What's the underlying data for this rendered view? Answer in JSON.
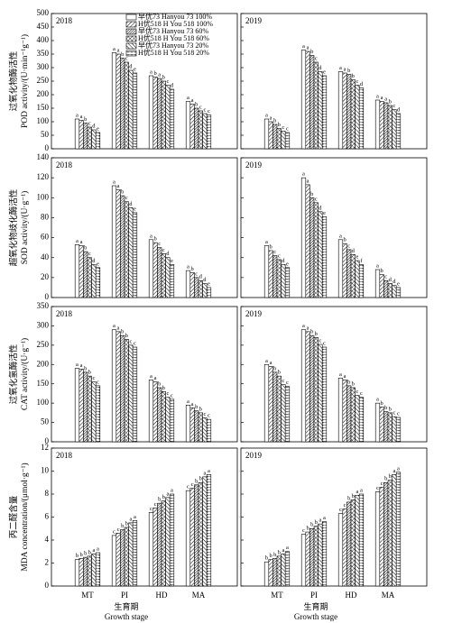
{
  "chart_data": [
    {
      "type": "bar",
      "panel": "2018",
      "ylabel": [
        "过氧化物酶活性",
        "POD activity/(U·min⁻¹g⁻¹)"
      ],
      "ylim": [
        0,
        500
      ],
      "yticks": [
        0,
        50,
        100,
        150,
        200,
        250,
        300,
        350,
        400,
        450,
        500
      ],
      "categories": [
        "MT",
        "PI",
        "HD",
        "MA"
      ],
      "legend": "top-right",
      "series": [
        {
          "name": "早优73 Hanyou 73 100%",
          "pattern": "none",
          "values": [
            110,
            355,
            270,
            175
          ],
          "letters": [
            "a",
            "a",
            "a",
            "a"
          ]
        },
        {
          "name": "H优518 H You 518 100%",
          "pattern": "diagonal",
          "values": [
            105,
            350,
            265,
            165
          ],
          "letters": [
            "a",
            "a",
            "b",
            "a"
          ]
        },
        {
          "name": "早优73 Hanyou 73 60%",
          "pattern": "dense-diagonal",
          "values": [
            95,
            335,
            260,
            150
          ],
          "letters": [
            "b",
            "b",
            "a",
            "b"
          ]
        },
        {
          "name": "H优518 H You 518 60%",
          "pattern": "crosshatch",
          "values": [
            80,
            320,
            250,
            140
          ],
          "letters": [
            "c",
            "c",
            "b",
            "c"
          ]
        },
        {
          "name": "早优73 Hanyou 73 20%",
          "pattern": "back-diagonal",
          "values": [
            70,
            290,
            235,
            130
          ],
          "letters": [
            "d",
            "d",
            "c",
            "c"
          ]
        },
        {
          "name": "H优518 H You 518 20%",
          "pattern": "horizontal",
          "values": [
            60,
            280,
            220,
            125
          ],
          "letters": [
            "e",
            "e",
            "d",
            "c"
          ]
        }
      ]
    },
    {
      "type": "bar",
      "panel": "2019",
      "ylim": [
        0,
        500
      ],
      "yticks": [
        0,
        50,
        100,
        150,
        200,
        250,
        300,
        350,
        400,
        450,
        500
      ],
      "categories": [
        "MT",
        "PI",
        "HD",
        "MA"
      ],
      "series": [
        {
          "values": [
            110,
            365,
            285,
            180
          ],
          "letters": [
            "a",
            "a",
            "a",
            "a"
          ]
        },
        {
          "values": [
            100,
            360,
            280,
            175
          ],
          "letters": [
            "a",
            "a",
            "a",
            "a"
          ]
        },
        {
          "values": [
            90,
            345,
            275,
            170
          ],
          "letters": [
            "b",
            "b",
            "b",
            "a"
          ]
        },
        {
          "values": [
            75,
            320,
            255,
            160
          ],
          "letters": [
            "b",
            "c",
            "b",
            "b"
          ]
        },
        {
          "values": [
            65,
            285,
            235,
            145
          ],
          "letters": [
            "c",
            "d",
            "c",
            "c"
          ]
        },
        {
          "values": [
            60,
            270,
            225,
            130
          ],
          "letters": [
            "c",
            "e",
            "d",
            "d"
          ]
        }
      ]
    },
    {
      "type": "bar",
      "panel": "2018",
      "ylabel": [
        "超氧化物歧化酶活性",
        "SOD activity/(U·g⁻¹)"
      ],
      "ylim": [
        0,
        140
      ],
      "yticks": [
        0,
        20,
        40,
        60,
        80,
        100,
        120,
        140
      ],
      "categories": [
        "MT",
        "PI",
        "HD",
        "MA"
      ],
      "series": [
        {
          "values": [
            53,
            112,
            58,
            27
          ],
          "letters": [
            "a",
            "a",
            "a",
            "a"
          ]
        },
        {
          "values": [
            52,
            108,
            55,
            25
          ],
          "letters": [
            "a",
            "a",
            "b",
            "b"
          ]
        },
        {
          "values": [
            46,
            102,
            50,
            20
          ],
          "letters": [
            "b",
            "b",
            "c",
            "c"
          ]
        },
        {
          "values": [
            40,
            96,
            44,
            17
          ],
          "letters": [
            "c",
            "c",
            "c",
            "d"
          ]
        },
        {
          "values": [
            33,
            90,
            40,
            14
          ],
          "letters": [
            "d",
            "d",
            "d",
            "d"
          ]
        },
        {
          "values": [
            30,
            85,
            33,
            10
          ],
          "letters": [
            "e",
            "e",
            "e",
            "e"
          ]
        }
      ]
    },
    {
      "type": "bar",
      "panel": "2019",
      "ylim": [
        0,
        140
      ],
      "yticks": [
        0,
        20,
        40,
        60,
        80,
        100,
        120,
        140
      ],
      "categories": [
        "MT",
        "PI",
        "HD",
        "MA"
      ],
      "series": [
        {
          "values": [
            52,
            120,
            58,
            28
          ],
          "letters": [
            "a",
            "a",
            "a",
            "a"
          ]
        },
        {
          "values": [
            47,
            113,
            54,
            23
          ],
          "letters": [
            "b",
            "a",
            "b",
            "b"
          ]
        },
        {
          "values": [
            42,
            100,
            48,
            17
          ],
          "letters": [
            "c",
            "b",
            "c",
            "c"
          ]
        },
        {
          "values": [
            38,
            95,
            43,
            14
          ],
          "letters": [
            "c",
            "c",
            "d",
            "d"
          ]
        },
        {
          "values": [
            33,
            86,
            37,
            12
          ],
          "letters": [
            "d",
            "d",
            "e",
            "d"
          ]
        },
        {
          "values": [
            30,
            81,
            33,
            10
          ],
          "letters": [
            "e",
            "e",
            "f",
            "e"
          ]
        }
      ]
    },
    {
      "type": "bar",
      "panel": "2018",
      "ylabel": [
        "过氧化氢酶活性",
        "CAT activity/(U·g⁻¹)"
      ],
      "ylim": [
        0,
        350
      ],
      "yticks": [
        0,
        50,
        100,
        150,
        200,
        250,
        300,
        350
      ],
      "categories": [
        "MT",
        "PI",
        "HD",
        "MA"
      ],
      "series": [
        {
          "values": [
            190,
            290,
            160,
            95
          ],
          "letters": [
            "a",
            "a",
            "a",
            "a"
          ]
        },
        {
          "values": [
            188,
            285,
            155,
            88
          ],
          "letters": [
            "a",
            "a",
            "a",
            "a"
          ]
        },
        {
          "values": [
            180,
            275,
            140,
            80
          ],
          "letters": [
            "b",
            "b",
            "b",
            "b"
          ]
        },
        {
          "values": [
            170,
            265,
            130,
            75
          ],
          "letters": [
            "b",
            "b",
            "b",
            "b"
          ]
        },
        {
          "values": [
            155,
            250,
            115,
            62
          ],
          "letters": [
            "c",
            "c",
            "c",
            "c"
          ]
        },
        {
          "values": [
            145,
            245,
            110,
            58
          ],
          "letters": [
            "c",
            "c",
            "c",
            "c"
          ]
        }
      ]
    },
    {
      "type": "bar",
      "panel": "2019",
      "ylim": [
        0,
        350
      ],
      "yticks": [
        0,
        50,
        100,
        150,
        200,
        250,
        300,
        350
      ],
      "categories": [
        "MT",
        "PI",
        "HD",
        "MA"
      ],
      "series": [
        {
          "values": [
            200,
            290,
            165,
            100
          ],
          "letters": [
            "a",
            "a",
            "a",
            "a"
          ]
        },
        {
          "values": [
            195,
            285,
            160,
            90
          ],
          "letters": [
            "a",
            "a",
            "a",
            "b"
          ]
        },
        {
          "values": [
            180,
            275,
            145,
            78
          ],
          "letters": [
            "b",
            "b",
            "b",
            "b"
          ]
        },
        {
          "values": [
            170,
            270,
            140,
            75
          ],
          "letters": [
            "b",
            "b",
            "b",
            "b"
          ]
        },
        {
          "values": [
            148,
            252,
            120,
            65
          ],
          "letters": [
            "c",
            "c",
            "c",
            "c"
          ]
        },
        {
          "values": [
            143,
            245,
            115,
            63
          ],
          "letters": [
            "c",
            "c",
            "c",
            "c"
          ]
        }
      ]
    },
    {
      "type": "bar",
      "panel": "2018",
      "ylabel": [
        "丙二醛含量",
        "MDA concentration/(μmol·g⁻¹)"
      ],
      "xlabel": [
        "生育期",
        "Growth stage"
      ],
      "ylim": [
        0,
        12
      ],
      "yticks": [
        0,
        2,
        4,
        6,
        8,
        10,
        12
      ],
      "categories": [
        "MT",
        "PI",
        "HD",
        "MA"
      ],
      "series": [
        {
          "values": [
            2.3,
            4.4,
            6.4,
            8.3
          ],
          "letters": [
            "b",
            "c",
            "c",
            "c"
          ]
        },
        {
          "values": [
            2.4,
            4.6,
            6.8,
            8.5
          ],
          "letters": [
            "b",
            "c",
            "c",
            "c"
          ]
        },
        {
          "values": [
            2.5,
            4.9,
            7.2,
            8.8
          ],
          "letters": [
            "b",
            "b",
            "b",
            "b"
          ]
        },
        {
          "values": [
            2.6,
            5.1,
            7.4,
            9.0
          ],
          "letters": [
            "b",
            "b",
            "b",
            "b"
          ]
        },
        {
          "values": [
            2.8,
            5.5,
            7.7,
            9.5
          ],
          "letters": [
            "a",
            "a",
            "a",
            "a"
          ]
        },
        {
          "values": [
            2.9,
            5.7,
            8.0,
            9.7
          ],
          "letters": [
            "a",
            "a",
            "a",
            "a"
          ]
        }
      ]
    },
    {
      "type": "bar",
      "panel": "2019",
      "xlabel": [
        "生育期",
        "Growth stage"
      ],
      "ylim": [
        0,
        12
      ],
      "yticks": [
        0,
        2,
        4,
        6,
        8,
        10,
        12
      ],
      "categories": [
        "MT",
        "PI",
        "HD",
        "MA"
      ],
      "series": [
        {
          "values": [
            2.1,
            4.5,
            6.3,
            8.2
          ],
          "letters": [
            "b",
            "c",
            "c",
            "c"
          ]
        },
        {
          "values": [
            2.3,
            4.7,
            6.7,
            8.6
          ],
          "letters": [
            "b",
            "b",
            "c",
            "c"
          ]
        },
        {
          "values": [
            2.4,
            5.0,
            7.3,
            9.0
          ],
          "letters": [
            "b",
            "b",
            "b",
            "b"
          ]
        },
        {
          "values": [
            2.6,
            5.2,
            7.5,
            9.2
          ],
          "letters": [
            "b",
            "b",
            "b",
            "b"
          ]
        },
        {
          "values": [
            2.8,
            5.4,
            7.9,
            9.7
          ],
          "letters": [
            "a",
            "a",
            "a",
            "a"
          ]
        },
        {
          "values": [
            3.0,
            5.6,
            8.0,
            9.9
          ],
          "letters": [
            "a",
            "a",
            "a",
            "a"
          ]
        }
      ]
    }
  ]
}
